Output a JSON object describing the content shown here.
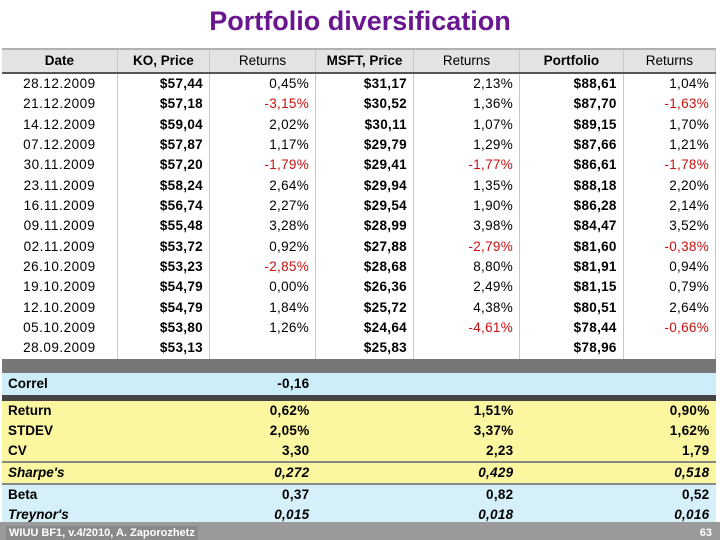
{
  "title": "Portfolio diversification",
  "headers": [
    "Date",
    "KO, Price",
    "Returns",
    "MSFT, Price",
    "Returns",
    "Portfolio",
    "Returns"
  ],
  "rows": [
    [
      "28.12.2009",
      "$57,44",
      "0,45%",
      "$31,17",
      "2,13%",
      "$88,61",
      "1,04%"
    ],
    [
      "21.12.2009",
      "$57,18",
      "-3,15%",
      "$30,52",
      "1,36%",
      "$87,70",
      "-1,63%"
    ],
    [
      "14.12.2009",
      "$59,04",
      "2,02%",
      "$30,11",
      "1,07%",
      "$89,15",
      "1,70%"
    ],
    [
      "07.12.2009",
      "$57,87",
      "1,17%",
      "$29,79",
      "1,29%",
      "$87,66",
      "1,21%"
    ],
    [
      "30.11.2009",
      "$57,20",
      "-1,79%",
      "$29,41",
      "-1,77%",
      "$86,61",
      "-1,78%"
    ],
    [
      "23.11.2009",
      "$58,24",
      "2,64%",
      "$29,94",
      "1,35%",
      "$88,18",
      "2,20%"
    ],
    [
      "16.11.2009",
      "$56,74",
      "2,27%",
      "$29,54",
      "1,90%",
      "$86,28",
      "2,14%"
    ],
    [
      "09.11.2009",
      "$55,48",
      "3,28%",
      "$28,99",
      "3,98%",
      "$84,47",
      "3,52%"
    ],
    [
      "02.11.2009",
      "$53,72",
      "0,92%",
      "$27,88",
      "-2,79%",
      "$81,60",
      "-0,38%"
    ],
    [
      "26.10.2009",
      "$53,23",
      "-2,85%",
      "$28,68",
      "8,80%",
      "$81,91",
      "0,94%"
    ],
    [
      "19.10.2009",
      "$54,79",
      "0,00%",
      "$26,36",
      "2,49%",
      "$81,15",
      "0,79%"
    ],
    [
      "12.10.2009",
      "$54,79",
      "1,84%",
      "$25,72",
      "4,38%",
      "$80,51",
      "2,64%"
    ],
    [
      "05.10.2009",
      "$53,80",
      "1,26%",
      "$24,64",
      "-4,61%",
      "$78,44",
      "-0,66%"
    ],
    [
      "28.09.2009",
      "$53,13",
      "",
      "$25,83",
      "",
      "$78,96",
      ""
    ]
  ],
  "correl": {
    "label": "Correl",
    "value": "-0,16"
  },
  "stats": [
    {
      "label": "Return",
      "ko": "0,62%",
      "msft": "1,51%",
      "pf": "0,90%",
      "style": "yellow"
    },
    {
      "label": "STDEV",
      "ko": "2,05%",
      "msft": "3,37%",
      "pf": "1,62%",
      "style": "yellow"
    },
    {
      "label": "CV",
      "ko": "3,30",
      "msft": "2,23",
      "pf": "1,79",
      "style": "yellow"
    },
    {
      "label": "Sharpe's",
      "ko": "0,272",
      "msft": "0,429",
      "pf": "0,518",
      "style": "yellow italic divtop"
    },
    {
      "label": "Beta",
      "ko": "0,37",
      "msft": "0,82",
      "pf": "0,52",
      "style": "blue divtop"
    },
    {
      "label": "Treynor's",
      "ko": "0,015",
      "msft": "0,018",
      "pf": "0,016",
      "style": "blue italic"
    }
  ],
  "footer": {
    "left": "WIUU BF1, v.4/2010, A. Zaporozhetz",
    "page": "63"
  },
  "colors": {
    "title": "#6a1690",
    "negative": "#cc1010",
    "yellow": "#fbf6a0",
    "blue": "#d6f0fa"
  }
}
